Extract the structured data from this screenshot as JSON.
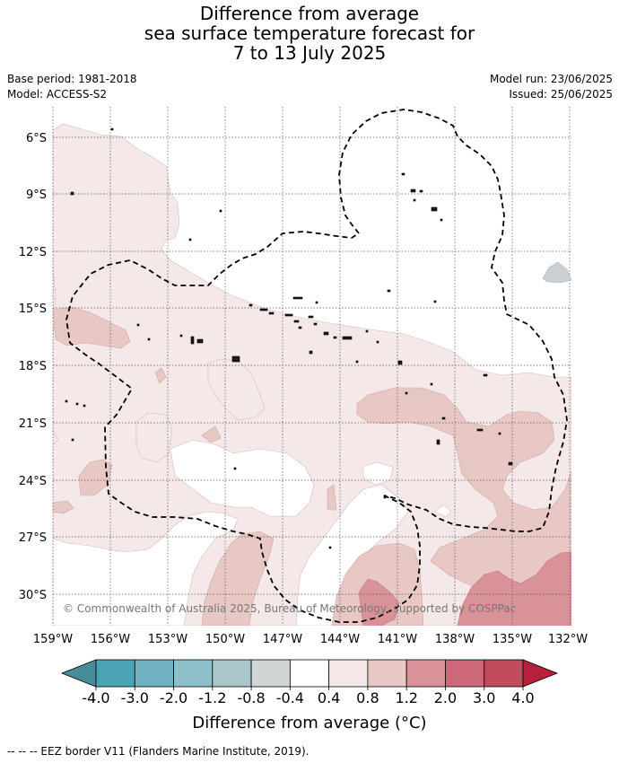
{
  "title": {
    "line1": "Difference from average",
    "line2": "sea surface temperature forecast for",
    "line3": "7 to 13 July 2025"
  },
  "meta": {
    "base_period": "Base period: 1981-2018",
    "model": "Model: ACCESS-S2",
    "model_run": "Model run: 23/06/2025",
    "issued": "Issued: 25/06/2025"
  },
  "map": {
    "lat_labels": [
      "6°S",
      "9°S",
      "12°S",
      "15°S",
      "18°S",
      "21°S",
      "24°S",
      "27°S",
      "30°S"
    ],
    "lon_labels": [
      "159°W",
      "156°W",
      "153°W",
      "150°W",
      "147°W",
      "144°W",
      "141°W",
      "138°W",
      "135°W",
      "132°W"
    ],
    "copyright": "© Commonwealth of Australia 2025, Bureau of Meteorology, supported by COSPPac"
  },
  "colorbar": {
    "tick_labels": [
      "-4.0",
      "-3.0",
      "-2.0",
      "-1.2",
      "-0.8",
      "-0.4",
      "0.4",
      "0.8",
      "1.2",
      "2.0",
      "3.0",
      "4.0"
    ],
    "colors": [
      "#458e98",
      "#4ba3b6",
      "#6fb0c1",
      "#8fbfca",
      "#a9c6cb",
      "#d1d5d6",
      "#ffffff",
      "#f5e8e8",
      "#e8c8c5",
      "#d99298",
      "#cc6877",
      "#c24b5c",
      "#b71f3c"
    ],
    "label": "Difference from average (°C)"
  },
  "footer": {
    "legend": "--  --  -- EEZ border V11 (Flanders Marine Institute, 2019)."
  }
}
